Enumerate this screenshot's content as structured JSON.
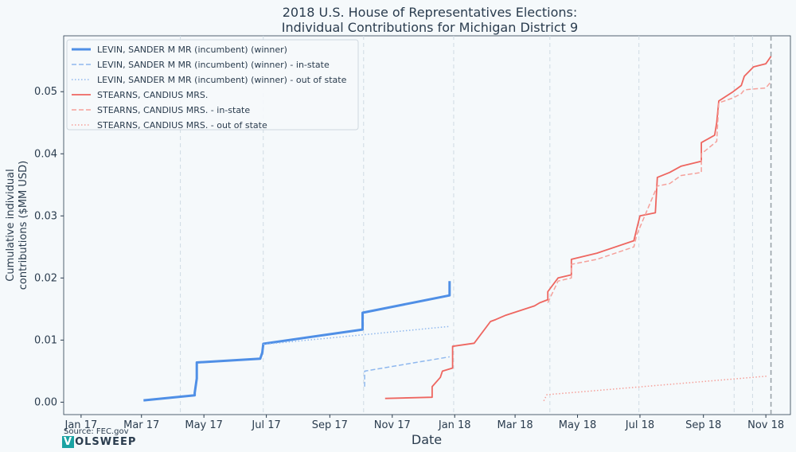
{
  "chart_data": {
    "type": "line",
    "title": "2018 U.S. House of Representatives Elections:",
    "subtitle": "Individual Contributions for Michigan District 9",
    "xlabel": "Date",
    "ylabel_line1": "Cumulative individual",
    "ylabel_line2": "contributions ($MM USD)",
    "xlim": [
      "2016-12-15",
      "2018-11-25"
    ],
    "ylim": [
      -0.002,
      0.059
    ],
    "x_ticks": [
      {
        "date": "2017-01-01",
        "label": "Jan 17"
      },
      {
        "date": "2017-03-01",
        "label": "Mar 17"
      },
      {
        "date": "2017-05-01",
        "label": "May 17"
      },
      {
        "date": "2017-07-01",
        "label": "Jul 17"
      },
      {
        "date": "2017-09-01",
        "label": "Sep 17"
      },
      {
        "date": "2017-11-01",
        "label": "Nov 17"
      },
      {
        "date": "2018-01-01",
        "label": "Jan 18"
      },
      {
        "date": "2018-03-01",
        "label": "Mar 18"
      },
      {
        "date": "2018-05-01",
        "label": "May 18"
      },
      {
        "date": "2018-07-01",
        "label": "Jul 18"
      },
      {
        "date": "2018-09-01",
        "label": "Sep 18"
      },
      {
        "date": "2018-11-01",
        "label": "Nov 18"
      }
    ],
    "y_ticks": [
      {
        "value": 0.0,
        "label": "0.00"
      },
      {
        "value": 0.01,
        "label": "0.01"
      },
      {
        "value": 0.02,
        "label": "0.02"
      },
      {
        "value": 0.03,
        "label": "0.03"
      },
      {
        "value": 0.04,
        "label": "0.04"
      },
      {
        "value": 0.05,
        "label": "0.05"
      }
    ],
    "event_lines": [
      "2017-04-08",
      "2017-06-28",
      "2017-10-04",
      "2017-12-31",
      "2018-04-04",
      "2018-06-30",
      "2018-10-01",
      "2018-10-19",
      "2018-11-06"
    ],
    "election_day": "2018-11-06",
    "grid": false,
    "legend_position": "top-left",
    "series": [
      {
        "name": "LEVIN, SANDER M MR (incumbent) (winner)",
        "color": "#4f8fe6",
        "style": "solid",
        "width": 3,
        "points": [
          [
            "2017-03-03",
            0.0003
          ],
          [
            "2017-04-22",
            0.0011
          ],
          [
            "2017-04-22",
            0.0015
          ],
          [
            "2017-04-24",
            0.0038
          ],
          [
            "2017-04-24",
            0.0064
          ],
          [
            "2017-06-25",
            0.007
          ],
          [
            "2017-06-27",
            0.008
          ],
          [
            "2017-06-28",
            0.0094
          ],
          [
            "2017-10-03",
            0.0117
          ],
          [
            "2017-10-03",
            0.0144
          ],
          [
            "2017-12-27",
            0.0172
          ],
          [
            "2017-12-27",
            0.0195
          ]
        ]
      },
      {
        "name": "LEVIN, SANDER M MR (incumbent) (winner) - in-state",
        "color": "#8fb8ee",
        "style": "dashed",
        "width": 1.5,
        "points": [
          [
            "2017-10-05",
            0.0025
          ],
          [
            "2017-10-05",
            0.005
          ],
          [
            "2017-12-27",
            0.0073
          ]
        ]
      },
      {
        "name": "LEVIN, SANDER M MR (incumbent) (winner) - out of state",
        "color": "#8fb8ee",
        "style": "dotted",
        "width": 1.5,
        "points": [
          [
            "2017-06-28",
            0.0093
          ],
          [
            "2017-12-27",
            0.0122
          ]
        ]
      },
      {
        "name": "STEARNS, CANDIUS MRS.",
        "color": "#ee6660",
        "style": "solid",
        "width": 1.8,
        "points": [
          [
            "2017-10-25",
            0.0006
          ],
          [
            "2017-12-10",
            0.0008
          ],
          [
            "2017-12-10",
            0.0025
          ],
          [
            "2017-12-18",
            0.004
          ],
          [
            "2017-12-20",
            0.005
          ],
          [
            "2017-12-30",
            0.0055
          ],
          [
            "2017-12-30",
            0.009
          ],
          [
            "2018-01-20",
            0.0095
          ],
          [
            "2018-02-05",
            0.013
          ],
          [
            "2018-02-10",
            0.0133
          ],
          [
            "2018-02-20",
            0.014
          ],
          [
            "2018-03-20",
            0.0155
          ],
          [
            "2018-03-25",
            0.016
          ],
          [
            "2018-04-02",
            0.0165
          ],
          [
            "2018-04-02",
            0.0178
          ],
          [
            "2018-04-12",
            0.02
          ],
          [
            "2018-04-25",
            0.0205
          ],
          [
            "2018-04-25",
            0.023
          ],
          [
            "2018-05-20",
            0.024
          ],
          [
            "2018-06-25",
            0.026
          ],
          [
            "2018-06-28",
            0.028
          ],
          [
            "2018-07-01",
            0.03
          ],
          [
            "2018-07-16",
            0.0305
          ],
          [
            "2018-07-18",
            0.0362
          ],
          [
            "2018-07-30",
            0.037
          ],
          [
            "2018-08-10",
            0.038
          ],
          [
            "2018-08-30",
            0.0388
          ],
          [
            "2018-08-30",
            0.0418
          ],
          [
            "2018-09-12",
            0.043
          ],
          [
            "2018-09-14",
            0.045
          ],
          [
            "2018-09-16",
            0.0485
          ],
          [
            "2018-09-30",
            0.05
          ],
          [
            "2018-10-08",
            0.051
          ],
          [
            "2018-10-11",
            0.0525
          ],
          [
            "2018-10-20",
            0.054
          ],
          [
            "2018-11-01",
            0.0545
          ],
          [
            "2018-11-06",
            0.0557
          ]
        ]
      },
      {
        "name": "STEARNS, CANDIUS MRS. - in-state",
        "color": "#f5a09a",
        "style": "dashed",
        "width": 1.5,
        "points": [
          [
            "2018-04-02",
            0.016
          ],
          [
            "2018-04-12",
            0.0195
          ],
          [
            "2018-04-25",
            0.02
          ],
          [
            "2018-04-25",
            0.0222
          ],
          [
            "2018-05-20",
            0.023
          ],
          [
            "2018-06-25",
            0.025
          ],
          [
            "2018-06-28",
            0.027
          ],
          [
            "2018-07-18",
            0.0348
          ],
          [
            "2018-07-30",
            0.0352
          ],
          [
            "2018-08-10",
            0.0365
          ],
          [
            "2018-08-30",
            0.037
          ],
          [
            "2018-08-30",
            0.04
          ],
          [
            "2018-09-14",
            0.042
          ],
          [
            "2018-09-16",
            0.0482
          ],
          [
            "2018-09-30",
            0.049
          ],
          [
            "2018-10-08",
            0.0497
          ],
          [
            "2018-10-11",
            0.0503
          ],
          [
            "2018-11-01",
            0.0506
          ],
          [
            "2018-11-06",
            0.0516
          ]
        ]
      },
      {
        "name": "STEARNS, CANDIUS MRS. - out of state",
        "color": "#f5a09a",
        "style": "dotted",
        "width": 1.5,
        "points": [
          [
            "2018-03-29",
            0.0002
          ],
          [
            "2018-04-01",
            0.0012
          ],
          [
            "2018-11-03",
            0.0042
          ]
        ]
      }
    ],
    "source": "Source: FEC.gov",
    "brand_first_letter": "V",
    "brand_rest": "OLSWEEP"
  }
}
